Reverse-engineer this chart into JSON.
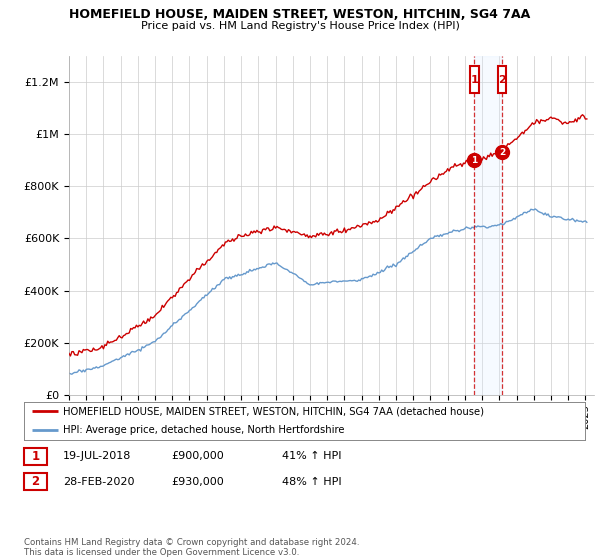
{
  "title": "HOMEFIELD HOUSE, MAIDEN STREET, WESTON, HITCHIN, SG4 7AA",
  "subtitle": "Price paid vs. HM Land Registry's House Price Index (HPI)",
  "ylabel_ticks": [
    "£0",
    "£200K",
    "£400K",
    "£600K",
    "£800K",
    "£1M",
    "£1.2M"
  ],
  "ytick_values": [
    0,
    200000,
    400000,
    600000,
    800000,
    1000000,
    1200000
  ],
  "ylim": [
    0,
    1300000
  ],
  "xlim_start": 1995,
  "xlim_end": 2025.5,
  "red_color": "#cc0000",
  "blue_color": "#6699cc",
  "shade_color": "#ddeeff",
  "marker1_date": 2018.54,
  "marker1_value": 900000,
  "marker2_date": 2020.16,
  "marker2_value": 930000,
  "legend_label1": "HOMEFIELD HOUSE, MAIDEN STREET, WESTON, HITCHIN, SG4 7AA (detached house)",
  "legend_label2": "HPI: Average price, detached house, North Hertfordshire",
  "table_row1": [
    "1",
    "19-JUL-2018",
    "£900,000",
    "41% ↑ HPI"
  ],
  "table_row2": [
    "2",
    "28-FEB-2020",
    "£930,000",
    "48% ↑ HPI"
  ],
  "footer": "Contains HM Land Registry data © Crown copyright and database right 2024.\nThis data is licensed under the Open Government Licence v3.0.",
  "background_color": "#ffffff",
  "grid_color": "#cccccc"
}
